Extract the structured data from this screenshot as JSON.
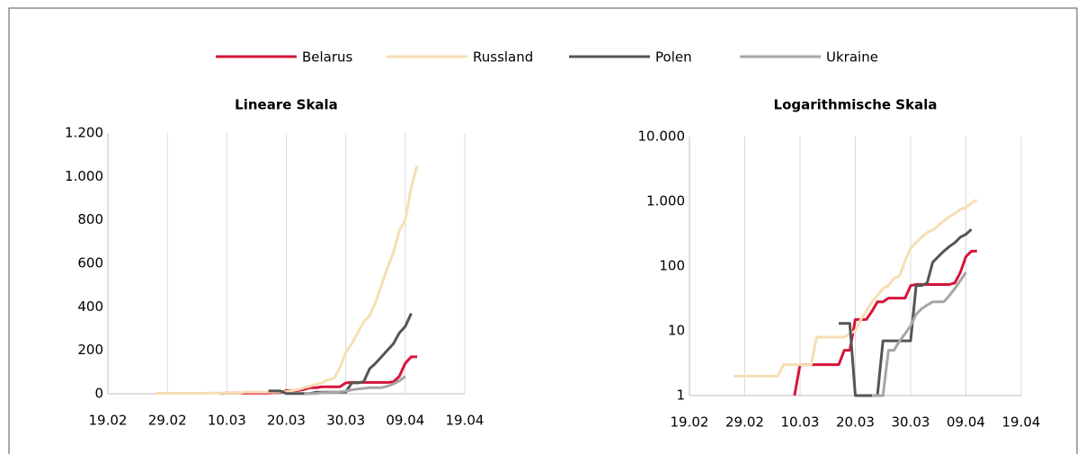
{
  "chart_data": [
    {
      "type": "line",
      "title": "Lineare Skala",
      "log": false,
      "grid": "x",
      "x": [
        57,
        58,
        59,
        60,
        61,
        62,
        63,
        64,
        65,
        66,
        67,
        68,
        69,
        70,
        71,
        72,
        73,
        74,
        75,
        76,
        77,
        78,
        79,
        80,
        81,
        82,
        83,
        84,
        85,
        86,
        87,
        88,
        89,
        90,
        91,
        92,
        93,
        94,
        95,
        96,
        97,
        98,
        99,
        100,
        101,
        102
      ],
      "xlim": [
        50,
        110
      ],
      "xticks": [
        {
          "value": 50,
          "label": "19.02"
        },
        {
          "value": 60,
          "label": "29.02"
        },
        {
          "value": 70,
          "label": "10.03"
        },
        {
          "value": 80,
          "label": "20.03"
        },
        {
          "value": 90,
          "label": "30.03"
        },
        {
          "value": 100,
          "label": "09.04"
        },
        {
          "value": 110,
          "label": "19.04"
        }
      ],
      "ylim": [
        0,
        1200
      ],
      "yticks": [
        0,
        200,
        400,
        600,
        800,
        {
          "value": 1000,
          "label": "1.000"
        },
        {
          "value": 1200,
          "label": "1.200"
        }
      ],
      "series": [
        {
          "name": "Belarus",
          "color": "#d6153c",
          "values": [
            null,
            null,
            null,
            null,
            null,
            null,
            null,
            null,
            null,
            null,
            null,
            null,
            1,
            3,
            3,
            3,
            3,
            3,
            3,
            3,
            3,
            5,
            5,
            15,
            15,
            15,
            20,
            28,
            28,
            32,
            32,
            32,
            32,
            50,
            52,
            52,
            52,
            52,
            52,
            52,
            52,
            55,
            80,
            140,
            170,
            170
          ]
        },
        {
          "name": "Russland",
          "color": "#f5dfb4",
          "values": [
            null,
            2,
            2,
            2,
            2,
            2,
            2,
            2,
            2,
            2,
            3,
            3,
            3,
            3,
            3,
            3,
            8,
            8,
            8,
            8,
            8,
            8,
            9,
            10,
            15,
            20,
            28,
            35,
            45,
            50,
            65,
            70,
            120,
            190,
            230,
            280,
            330,
            360,
            420,
            500,
            580,
            650,
            750,
            800,
            950,
            1050
          ]
        },
        {
          "name": "Polen",
          "color": "#555555",
          "values": [
            null,
            null,
            null,
            null,
            null,
            null,
            null,
            null,
            null,
            null,
            null,
            null,
            null,
            null,
            null,
            null,
            null,
            null,
            null,
            null,
            13,
            13,
            13,
            1,
            1,
            1,
            1,
            1,
            7,
            7,
            7,
            7,
            7,
            7,
            50,
            50,
            55,
            115,
            140,
            170,
            200,
            230,
            280,
            310,
            370,
            null
          ]
        },
        {
          "name": "Ukraine",
          "color": "#a6a6a6",
          "values": [
            null,
            null,
            null,
            null,
            null,
            null,
            null,
            null,
            null,
            null,
            null,
            null,
            null,
            null,
            null,
            null,
            null,
            null,
            null,
            null,
            null,
            null,
            null,
            null,
            null,
            null,
            1,
            1,
            1,
            5,
            5,
            7,
            9,
            12,
            18,
            22,
            25,
            28,
            28,
            28,
            35,
            45,
            60,
            80,
            null,
            null
          ]
        }
      ]
    },
    {
      "type": "line",
      "title": "Logarithmische Skala",
      "log": true,
      "grid": "x",
      "x": [
        57,
        58,
        59,
        60,
        61,
        62,
        63,
        64,
        65,
        66,
        67,
        68,
        69,
        70,
        71,
        72,
        73,
        74,
        75,
        76,
        77,
        78,
        79,
        80,
        81,
        82,
        83,
        84,
        85,
        86,
        87,
        88,
        89,
        90,
        91,
        92,
        93,
        94,
        95,
        96,
        97,
        98,
        99,
        100,
        101,
        102
      ],
      "xlim": [
        50,
        110
      ],
      "xticks": [
        {
          "value": 50,
          "label": "19.02"
        },
        {
          "value": 60,
          "label": "29.02"
        },
        {
          "value": 70,
          "label": "10.03"
        },
        {
          "value": 80,
          "label": "20.03"
        },
        {
          "value": 90,
          "label": "30.03"
        },
        {
          "value": 100,
          "label": "09.04"
        },
        {
          "value": 110,
          "label": "19.04"
        }
      ],
      "ylim": [
        1,
        10000
      ],
      "yticks": [
        1,
        10,
        100,
        {
          "value": 1000,
          "label": "1.000"
        },
        {
          "value": 10000,
          "label": "10.000"
        }
      ],
      "series": [
        {
          "color": "#d6153c",
          "values": [
            null,
            null,
            null,
            null,
            null,
            null,
            null,
            null,
            null,
            null,
            null,
            null,
            1,
            3,
            3,
            3,
            3,
            3,
            3,
            3,
            3,
            5,
            5,
            15,
            15,
            15,
            20,
            28,
            28,
            32,
            32,
            32,
            32,
            50,
            52,
            52,
            52,
            52,
            52,
            52,
            52,
            55,
            80,
            140,
            170,
            170
          ]
        },
        {
          "color": "#f5dfb4",
          "values": [
            null,
            2,
            2,
            2,
            2,
            2,
            2,
            2,
            2,
            2,
            3,
            3,
            3,
            3,
            3,
            3,
            8,
            8,
            8,
            8,
            8,
            8,
            9,
            10,
            15,
            20,
            28,
            35,
            45,
            50,
            65,
            70,
            120,
            190,
            230,
            280,
            330,
            360,
            420,
            500,
            580,
            650,
            750,
            800,
            950,
            1050
          ]
        },
        {
          "color": "#555555",
          "values": [
            null,
            null,
            null,
            null,
            null,
            null,
            null,
            null,
            null,
            null,
            null,
            null,
            null,
            null,
            null,
            null,
            null,
            null,
            null,
            null,
            13,
            13,
            13,
            1,
            1,
            1,
            1,
            1,
            7,
            7,
            7,
            7,
            7,
            7,
            50,
            50,
            55,
            115,
            140,
            170,
            200,
            230,
            280,
            310,
            370,
            null
          ]
        },
        {
          "color": "#a6a6a6",
          "values": [
            null,
            null,
            null,
            null,
            null,
            null,
            null,
            null,
            null,
            null,
            null,
            null,
            null,
            null,
            null,
            null,
            null,
            null,
            null,
            null,
            null,
            null,
            null,
            null,
            null,
            null,
            1,
            1,
            1,
            5,
            5,
            7,
            9,
            12,
            18,
            22,
            25,
            28,
            28,
            28,
            35,
            45,
            60,
            80,
            null,
            null
          ]
        }
      ]
    }
  ]
}
